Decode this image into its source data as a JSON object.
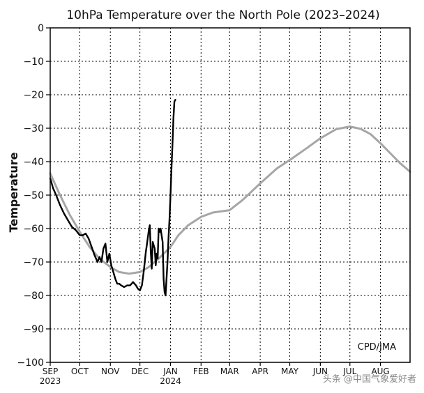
{
  "chart_data": {
    "type": "line",
    "title": "10hPa Temperature over the North Pole (2023–2024)",
    "ylabel": "Temperature",
    "xlabel": "",
    "ylim": [
      -100,
      0
    ],
    "yticks": [
      0,
      -10,
      -20,
      -30,
      -40,
      -50,
      -60,
      -70,
      -80,
      -90,
      -100
    ],
    "xlim": [
      0,
      365
    ],
    "months": [
      {
        "label": "SEP",
        "year": "2023",
        "day": 0
      },
      {
        "label": "OCT",
        "year": "",
        "day": 30
      },
      {
        "label": "NOV",
        "year": "",
        "day": 61
      },
      {
        "label": "DEC",
        "year": "",
        "day": 91
      },
      {
        "label": "JAN",
        "year": "2024",
        "day": 122
      },
      {
        "label": "FEB",
        "year": "",
        "day": 153
      },
      {
        "label": "MAR",
        "year": "",
        "day": 182
      },
      {
        "label": "APR",
        "year": "",
        "day": 213
      },
      {
        "label": "MAY",
        "year": "",
        "day": 243
      },
      {
        "label": "JUN",
        "year": "",
        "day": 274
      },
      {
        "label": "JUL",
        "year": "",
        "day": 304
      },
      {
        "label": "AUG",
        "year": "",
        "day": 335
      }
    ],
    "grid": true,
    "credit": "CPD/JMA",
    "series": [
      {
        "color": "#a6a6a6",
        "x": [
          0,
          10,
          20,
          30,
          40,
          50,
          61,
          70,
          80,
          91,
          100,
          110,
          122,
          130,
          140,
          153,
          165,
          182,
          195,
          213,
          230,
          243,
          260,
          274,
          290,
          304,
          315,
          325,
          335,
          345,
          355,
          365
        ],
        "y": [
          -43.5,
          -50,
          -56,
          -61,
          -65.5,
          -69,
          -71.5,
          -73,
          -73.5,
          -73,
          -71.5,
          -69,
          -65.5,
          -62,
          -59,
          -56.5,
          -55.2,
          -54.5,
          -51.5,
          -46.5,
          -42,
          -39.5,
          -36,
          -33,
          -30.3,
          -29.5,
          -30.2,
          -31.8,
          -34.5,
          -37.5,
          -40.5,
          -43
        ]
      },
      {
        "color": "#000000",
        "x": [
          0,
          3,
          6,
          10,
          14,
          18,
          22,
          26,
          30,
          33,
          36,
          39,
          42,
          45,
          48,
          50,
          52,
          54,
          56,
          58,
          60,
          62,
          64,
          66,
          68,
          70,
          72,
          75,
          78,
          81,
          84,
          87,
          89,
          91,
          93,
          95,
          97,
          98,
          100,
          101,
          102,
          103,
          104,
          105,
          106,
          107,
          108,
          109,
          110,
          111,
          112,
          113,
          114,
          115,
          116,
          117,
          118,
          119,
          120,
          121,
          122,
          123,
          124,
          125,
          126,
          127
        ],
        "y": [
          -45,
          -48,
          -50,
          -53,
          -55.5,
          -57.5,
          -59.5,
          -60.5,
          -62,
          -62,
          -61.5,
          -63,
          -65.5,
          -68,
          -70,
          -68.5,
          -70,
          -66,
          -64.5,
          -70,
          -67.5,
          -71,
          -73,
          -75,
          -76.5,
          -76.5,
          -77,
          -77.5,
          -77,
          -77,
          -76,
          -77,
          -78,
          -78.5,
          -77,
          -72.5,
          -67,
          -65,
          -60.5,
          -59,
          -67,
          -72,
          -64,
          -65,
          -66,
          -71,
          -67.5,
          -69,
          -60,
          -61,
          -60,
          -62,
          -64,
          -75,
          -79,
          -80,
          -75,
          -70,
          -63,
          -57,
          -50,
          -42,
          -35,
          -27,
          -22,
          -21.5
        ]
      }
    ]
  },
  "watermark": "头条 @中国气象爱好者"
}
